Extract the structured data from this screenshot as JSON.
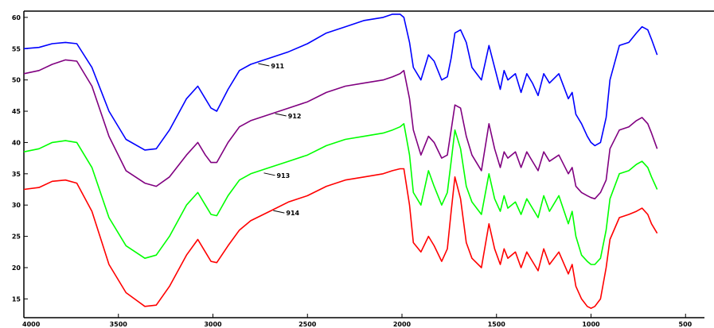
{
  "chart_data": {
    "type": "line",
    "title": "",
    "xlabel": "",
    "ylabel": "",
    "xlim": [
      4000,
      400
    ],
    "ylim": [
      12,
      61
    ],
    "grid": false,
    "x_ticks": [
      "4000",
      "3500",
      "3000",
      "2500",
      "2000",
      "1500",
      "1000",
      "500"
    ],
    "y_ticks": [
      "60",
      "55",
      "50",
      "45",
      "40",
      "35",
      "30",
      "25",
      "20",
      "15"
    ],
    "series": [
      {
        "name": "911",
        "color": "#0000ff",
        "x": [
          4000,
          3920,
          3850,
          3780,
          3720,
          3640,
          3550,
          3460,
          3360,
          3300,
          3230,
          3140,
          3080,
          3040,
          3010,
          2980,
          2920,
          2860,
          2800,
          2700,
          2600,
          2500,
          2400,
          2300,
          2200,
          2100,
          2050,
          2010,
          1990,
          1960,
          1940,
          1900,
          1860,
          1830,
          1790,
          1760,
          1740,
          1720,
          1690,
          1660,
          1630,
          1580,
          1540,
          1510,
          1480,
          1460,
          1440,
          1400,
          1370,
          1340,
          1310,
          1280,
          1250,
          1220,
          1170,
          1120,
          1100,
          1080,
          1050,
          1020,
          1000,
          980,
          950,
          920,
          900,
          850,
          800,
          760,
          730,
          700,
          680,
          650
        ],
        "y": [
          55.0,
          55.2,
          55.8,
          56.0,
          55.8,
          52.0,
          45.0,
          40.5,
          38.8,
          39.0,
          42.0,
          47.0,
          49.0,
          47.0,
          45.5,
          45.0,
          48.5,
          51.5,
          52.5,
          53.5,
          54.5,
          55.8,
          57.5,
          58.5,
          59.5,
          60.0,
          60.5,
          60.5,
          60.0,
          56.0,
          52.0,
          50.0,
          54.0,
          53.0,
          50.0,
          50.5,
          53.5,
          57.5,
          58.0,
          56.0,
          52.0,
          50.0,
          55.5,
          52.0,
          48.5,
          51.5,
          50.0,
          51.0,
          48.0,
          51.0,
          49.5,
          47.5,
          51.0,
          49.5,
          51.0,
          47.0,
          48.0,
          44.5,
          43.0,
          41.0,
          40.0,
          39.5,
          40.0,
          44.0,
          50.0,
          55.5,
          56.0,
          57.5,
          58.5,
          58.0,
          56.5,
          54.0
        ]
      },
      {
        "name": "912",
        "color": "#800080",
        "x": [
          4000,
          3920,
          3850,
          3780,
          3720,
          3640,
          3550,
          3460,
          3360,
          3300,
          3230,
          3140,
          3080,
          3040,
          3010,
          2980,
          2920,
          2860,
          2800,
          2700,
          2600,
          2500,
          2400,
          2300,
          2200,
          2100,
          2050,
          2010,
          1990,
          1960,
          1940,
          1900,
          1860,
          1830,
          1790,
          1760,
          1740,
          1720,
          1690,
          1660,
          1630,
          1580,
          1540,
          1510,
          1480,
          1460,
          1440,
          1400,
          1370,
          1340,
          1310,
          1280,
          1250,
          1220,
          1170,
          1120,
          1100,
          1080,
          1050,
          1020,
          1000,
          980,
          950,
          920,
          900,
          850,
          800,
          760,
          730,
          700,
          680,
          650
        ],
        "y": [
          51.0,
          51.5,
          52.5,
          53.2,
          53.0,
          49.0,
          41.0,
          35.5,
          33.5,
          33.0,
          34.5,
          38.0,
          40.0,
          38.0,
          36.8,
          36.8,
          40.0,
          42.5,
          43.5,
          44.5,
          45.5,
          46.5,
          48.0,
          49.0,
          49.5,
          50.0,
          50.5,
          51.0,
          51.5,
          47.0,
          42.0,
          38.0,
          41.0,
          40.0,
          37.5,
          38.0,
          42.0,
          46.0,
          45.5,
          41.0,
          38.0,
          35.5,
          43.0,
          39.0,
          36.0,
          38.5,
          37.5,
          38.5,
          36.0,
          38.5,
          37.0,
          35.5,
          38.5,
          37.0,
          38.0,
          35.0,
          36.0,
          33.0,
          32.0,
          31.5,
          31.2,
          31.0,
          32.0,
          34.0,
          39.0,
          42.0,
          42.5,
          43.5,
          44.0,
          43.0,
          41.5,
          39.0
        ]
      },
      {
        "name": "913",
        "color": "#00ff00",
        "x": [
          4000,
          3920,
          3850,
          3780,
          3720,
          3640,
          3550,
          3460,
          3360,
          3300,
          3230,
          3140,
          3080,
          3040,
          3010,
          2980,
          2920,
          2860,
          2800,
          2700,
          2600,
          2500,
          2400,
          2300,
          2200,
          2100,
          2050,
          2010,
          1990,
          1960,
          1940,
          1900,
          1860,
          1830,
          1790,
          1760,
          1740,
          1720,
          1690,
          1660,
          1630,
          1580,
          1540,
          1510,
          1480,
          1460,
          1440,
          1400,
          1370,
          1340,
          1310,
          1280,
          1250,
          1220,
          1170,
          1120,
          1100,
          1080,
          1050,
          1020,
          1000,
          980,
          950,
          920,
          900,
          850,
          800,
          760,
          730,
          700,
          680,
          650
        ],
        "y": [
          38.5,
          39.0,
          40.0,
          40.3,
          40.0,
          36.0,
          28.0,
          23.5,
          21.5,
          22.0,
          25.0,
          30.0,
          32.0,
          30.0,
          28.5,
          28.3,
          31.5,
          34.0,
          35.0,
          36.0,
          37.0,
          38.0,
          39.5,
          40.5,
          41.0,
          41.5,
          42.0,
          42.5,
          43.0,
          38.0,
          32.0,
          30.0,
          35.5,
          33.0,
          30.0,
          32.0,
          37.0,
          42.0,
          39.0,
          33.0,
          30.5,
          28.5,
          35.0,
          31.0,
          29.0,
          31.5,
          29.5,
          30.5,
          28.5,
          31.0,
          29.5,
          28.0,
          31.5,
          29.0,
          31.5,
          27.0,
          29.0,
          25.0,
          22.0,
          21.0,
          20.5,
          20.5,
          21.5,
          26.0,
          31.0,
          35.0,
          35.5,
          36.5,
          37.0,
          36.0,
          34.5,
          32.5
        ]
      },
      {
        "name": "914",
        "color": "#ff0000",
        "x": [
          4000,
          3920,
          3850,
          3780,
          3720,
          3640,
          3550,
          3460,
          3360,
          3300,
          3230,
          3140,
          3080,
          3040,
          3010,
          2980,
          2920,
          2860,
          2800,
          2700,
          2600,
          2500,
          2400,
          2300,
          2200,
          2100,
          2050,
          2010,
          1990,
          1960,
          1940,
          1900,
          1860,
          1830,
          1790,
          1760,
          1740,
          1720,
          1690,
          1660,
          1630,
          1580,
          1540,
          1510,
          1480,
          1460,
          1440,
          1400,
          1370,
          1340,
          1310,
          1280,
          1250,
          1220,
          1170,
          1120,
          1100,
          1080,
          1050,
          1020,
          1000,
          980,
          950,
          920,
          900,
          850,
          800,
          760,
          730,
          700,
          680,
          650
        ],
        "y": [
          32.5,
          32.8,
          33.8,
          34.0,
          33.5,
          29.0,
          20.5,
          16.0,
          13.8,
          14.0,
          17.0,
          22.0,
          24.5,
          22.5,
          21.0,
          20.8,
          23.5,
          26.0,
          27.5,
          29.0,
          30.5,
          31.5,
          33.0,
          34.0,
          34.5,
          35.0,
          35.5,
          35.8,
          35.8,
          30.0,
          24.0,
          22.5,
          25.0,
          23.5,
          21.0,
          23.0,
          29.0,
          34.5,
          31.0,
          24.0,
          21.5,
          20.0,
          27.0,
          23.0,
          20.5,
          23.0,
          21.5,
          22.5,
          20.0,
          22.5,
          21.0,
          19.5,
          23.0,
          20.5,
          22.5,
          19.0,
          20.5,
          17.0,
          15.0,
          13.8,
          13.5,
          13.8,
          15.0,
          20.0,
          24.5,
          28.0,
          28.5,
          29.0,
          29.5,
          28.5,
          27.0,
          25.5
        ]
      }
    ],
    "series_labels": [
      {
        "text": "911",
        "x": 2710,
        "y": 52.5
      },
      {
        "text": "912",
        "x": 2620,
        "y": 44.5
      },
      {
        "text": "913",
        "x": 2680,
        "y": 35.0
      },
      {
        "text": "914",
        "x": 2630,
        "y": 29.0
      }
    ]
  }
}
